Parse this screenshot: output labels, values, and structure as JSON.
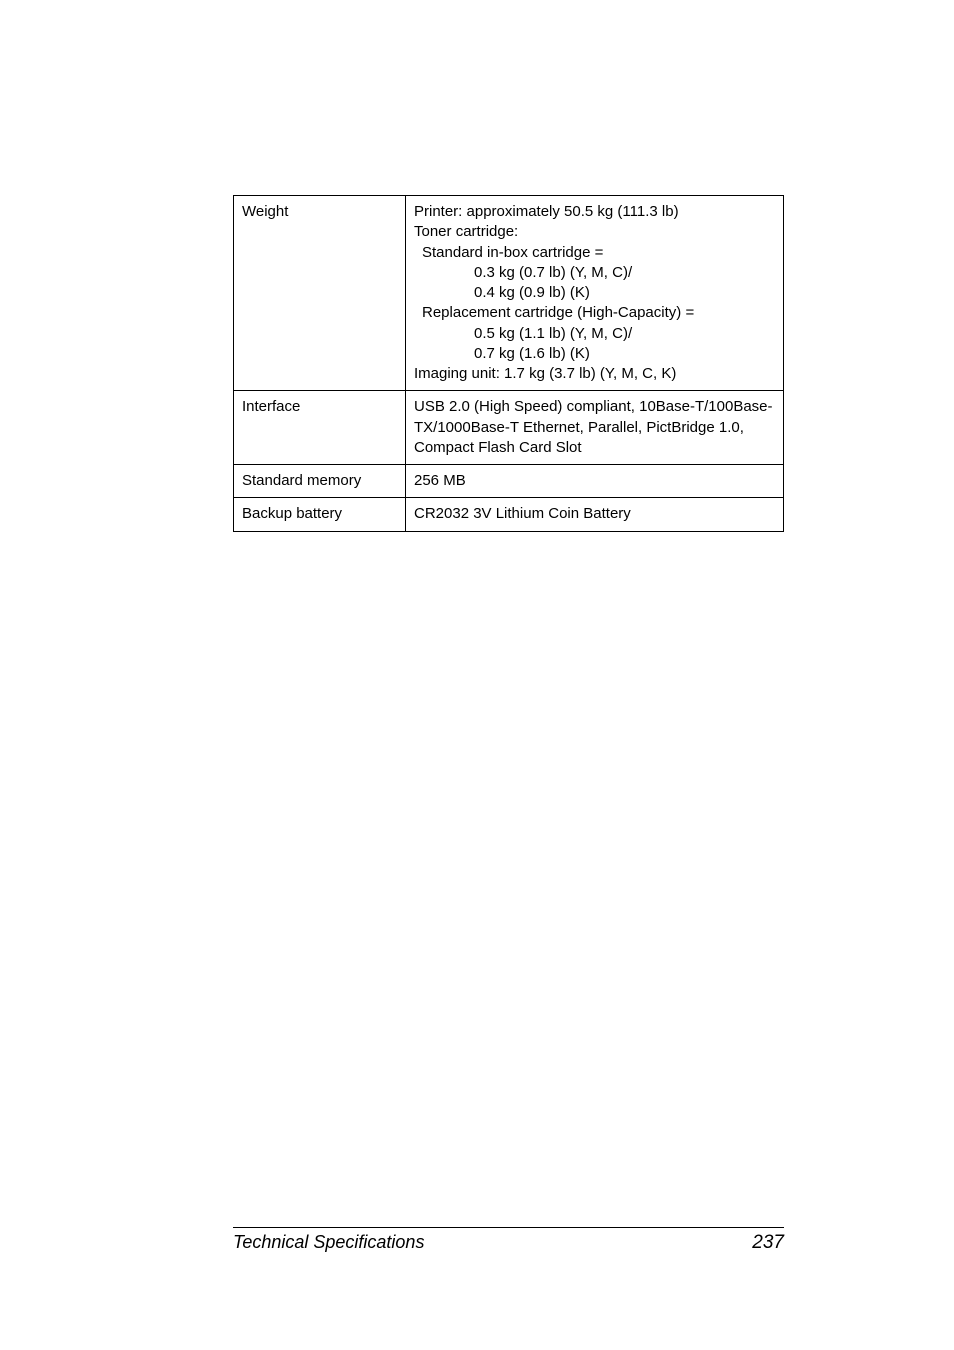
{
  "table": {
    "rows": [
      {
        "label": "Weight",
        "lines": [
          {
            "text": "Printer: approximately 50.5 kg (111.3 lb)",
            "indent": 0
          },
          {
            "text": "Toner cartridge:",
            "indent": 0
          },
          {
            "text": "Standard in-box cartridge =",
            "indent": 1
          },
          {
            "text": "0.3 kg (0.7 lb) (Y, M, C)/",
            "indent": 2
          },
          {
            "text": "0.4 kg (0.9 lb) (K)",
            "indent": 2
          },
          {
            "text": "Replacement cartridge (High-Capacity) =",
            "indent": 1
          },
          {
            "text": "0.5 kg (1.1 lb) (Y, M, C)/",
            "indent": 2
          },
          {
            "text": "0.7 kg (1.6 lb) (K)",
            "indent": 2
          },
          {
            "text": "Imaging unit: 1.7 kg (3.7 lb) (Y, M, C, K)",
            "indent": 0
          }
        ]
      },
      {
        "label": "Interface",
        "lines": [
          {
            "text": "USB 2.0 (High Speed) compliant, 10Base-T/100Base-TX/1000Base-T Ethernet, Parallel, PictBridge 1.0, Compact Flash Card Slot",
            "indent": 0
          }
        ]
      },
      {
        "label": "Standard memory",
        "lines": [
          {
            "text": "256 MB",
            "indent": 0
          }
        ]
      },
      {
        "label": "Backup battery",
        "lines": [
          {
            "text": "CR2032 3V Lithium Coin Battery",
            "indent": 0
          }
        ]
      }
    ]
  },
  "footer": {
    "title": "Technical Specifications",
    "page": "237"
  },
  "colors": {
    "text": "#000000",
    "border": "#000000",
    "background": "#ffffff"
  }
}
